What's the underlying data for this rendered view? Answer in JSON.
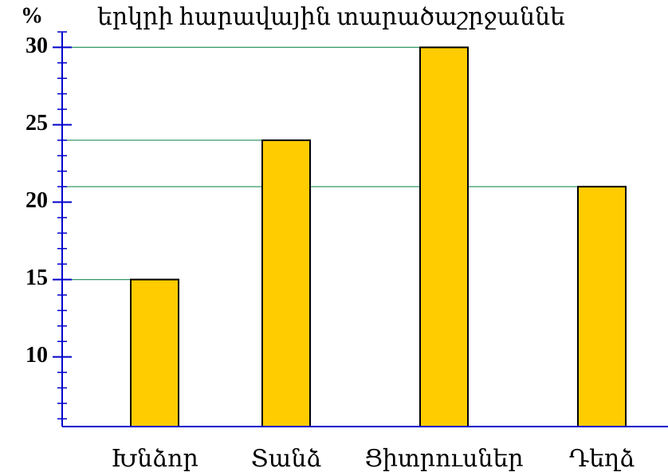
{
  "chart_data": {
    "type": "bar",
    "title": "երկրի հարավային տարածաշրջաննե",
    "y_label": "%",
    "categories": [
      "Խնձոր",
      "Տանձ",
      "Ցիտրուսներ",
      "Դեղձ"
    ],
    "values": [
      15,
      24,
      30,
      21
    ],
    "color": "#ffcc00",
    "reference_line_color": "#339966",
    "axis_color": "#0000cc",
    "ylim": [
      5.5,
      31
    ],
    "yticks": [
      10,
      15,
      20,
      25,
      30
    ],
    "minor_yticks": [
      6,
      7,
      8,
      9,
      11,
      12,
      13,
      14,
      16,
      17,
      18,
      19,
      21,
      22,
      23,
      24,
      26,
      27,
      28,
      29,
      31
    ]
  }
}
